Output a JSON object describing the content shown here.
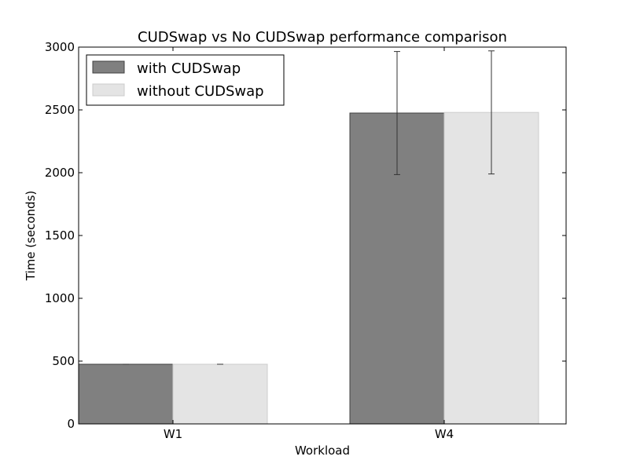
{
  "chart_data": {
    "type": "bar",
    "title": "CUDSwap vs No CUDSwap performance comparison",
    "xlabel": "Workload",
    "ylabel": "Time (seconds)",
    "categories": [
      "W1",
      "W4"
    ],
    "ylim": [
      0,
      3000
    ],
    "yticks": [
      0,
      500,
      1000,
      1500,
      2000,
      2500,
      3000
    ],
    "grid": false,
    "legend_position": "top-left",
    "series": [
      {
        "name": "with CUDSwap",
        "color": "#808080",
        "edge_color": "#404040",
        "values": [
          475,
          2475
        ],
        "error": [
          0,
          490
        ]
      },
      {
        "name": "without CUDSwap",
        "color": "#e4e4e4",
        "edge_color": "#cccccc",
        "values": [
          475,
          2480
        ],
        "error": [
          0,
          490
        ]
      }
    ]
  }
}
